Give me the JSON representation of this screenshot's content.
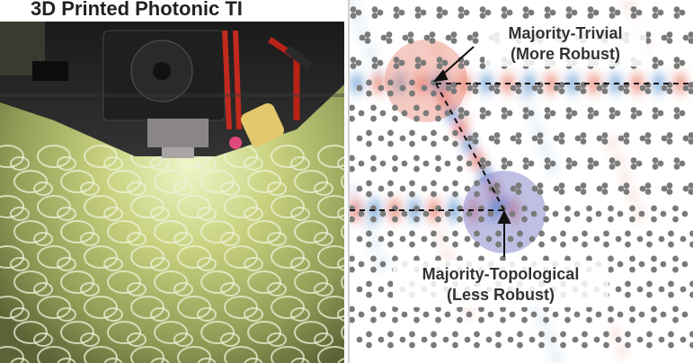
{
  "left_panel": {
    "title": "3D Printed Photonic TI"
  },
  "right_panel": {
    "annotation_trivial_line1": "Majority-Trivial",
    "annotation_trivial_line2": "(More Robust)",
    "annotation_topological_line1": "Majority-Topological",
    "annotation_topological_line2": "(Less Robust)"
  },
  "colors": {
    "field_positive": "#e0533a",
    "field_negative": "#3b7fc4",
    "trivial_highlight": "#e88a78",
    "topological_highlight": "#7f7fc9",
    "rod": "#7a7a7a",
    "printed_sheet": "#bfc87e"
  }
}
